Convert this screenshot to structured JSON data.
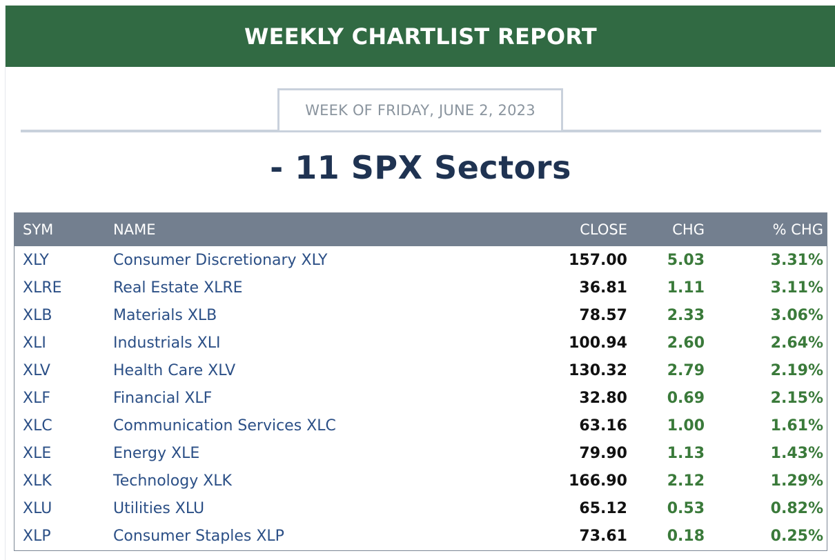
{
  "header": {
    "title": "WEEKLY CHARTLIST REPORT",
    "week_label": "WEEK OF FRIDAY, JUNE 2, 2023",
    "subtitle": "- 11 SPX Sectors"
  },
  "colors": {
    "banner": "#316a43",
    "table_header": "#737f8f",
    "link_text": "#2b4f86",
    "positive_change": "#3a7a3a",
    "subtitle": "#1f3352"
  },
  "table": {
    "columns": [
      "SYM",
      "NAME",
      "CLOSE",
      "CHG",
      "% CHG"
    ],
    "rows": [
      {
        "sym": "XLY",
        "name": "Consumer Discretionary XLY",
        "close": "157.00",
        "chg": "5.03",
        "pct": "3.31%"
      },
      {
        "sym": "XLRE",
        "name": "Real Estate XLRE",
        "close": "36.81",
        "chg": "1.11",
        "pct": "3.11%"
      },
      {
        "sym": "XLB",
        "name": "Materials XLB",
        "close": "78.57",
        "chg": "2.33",
        "pct": "3.06%"
      },
      {
        "sym": "XLI",
        "name": "Industrials XLI",
        "close": "100.94",
        "chg": "2.60",
        "pct": "2.64%"
      },
      {
        "sym": "XLV",
        "name": "Health Care XLV",
        "close": "130.32",
        "chg": "2.79",
        "pct": "2.19%"
      },
      {
        "sym": "XLF",
        "name": "Financial XLF",
        "close": "32.80",
        "chg": "0.69",
        "pct": "2.15%"
      },
      {
        "sym": "XLC",
        "name": "Communication Services XLC",
        "close": "63.16",
        "chg": "1.00",
        "pct": "1.61%"
      },
      {
        "sym": "XLE",
        "name": "Energy XLE",
        "close": "79.90",
        "chg": "1.13",
        "pct": "1.43%"
      },
      {
        "sym": "XLK",
        "name": "Technology XLK",
        "close": "166.90",
        "chg": "2.12",
        "pct": "1.29%"
      },
      {
        "sym": "XLU",
        "name": "Utilities XLU",
        "close": "65.12",
        "chg": "0.53",
        "pct": "0.82%"
      },
      {
        "sym": "XLP",
        "name": "Consumer Staples XLP",
        "close": "73.61",
        "chg": "0.18",
        "pct": "0.25%"
      }
    ]
  }
}
